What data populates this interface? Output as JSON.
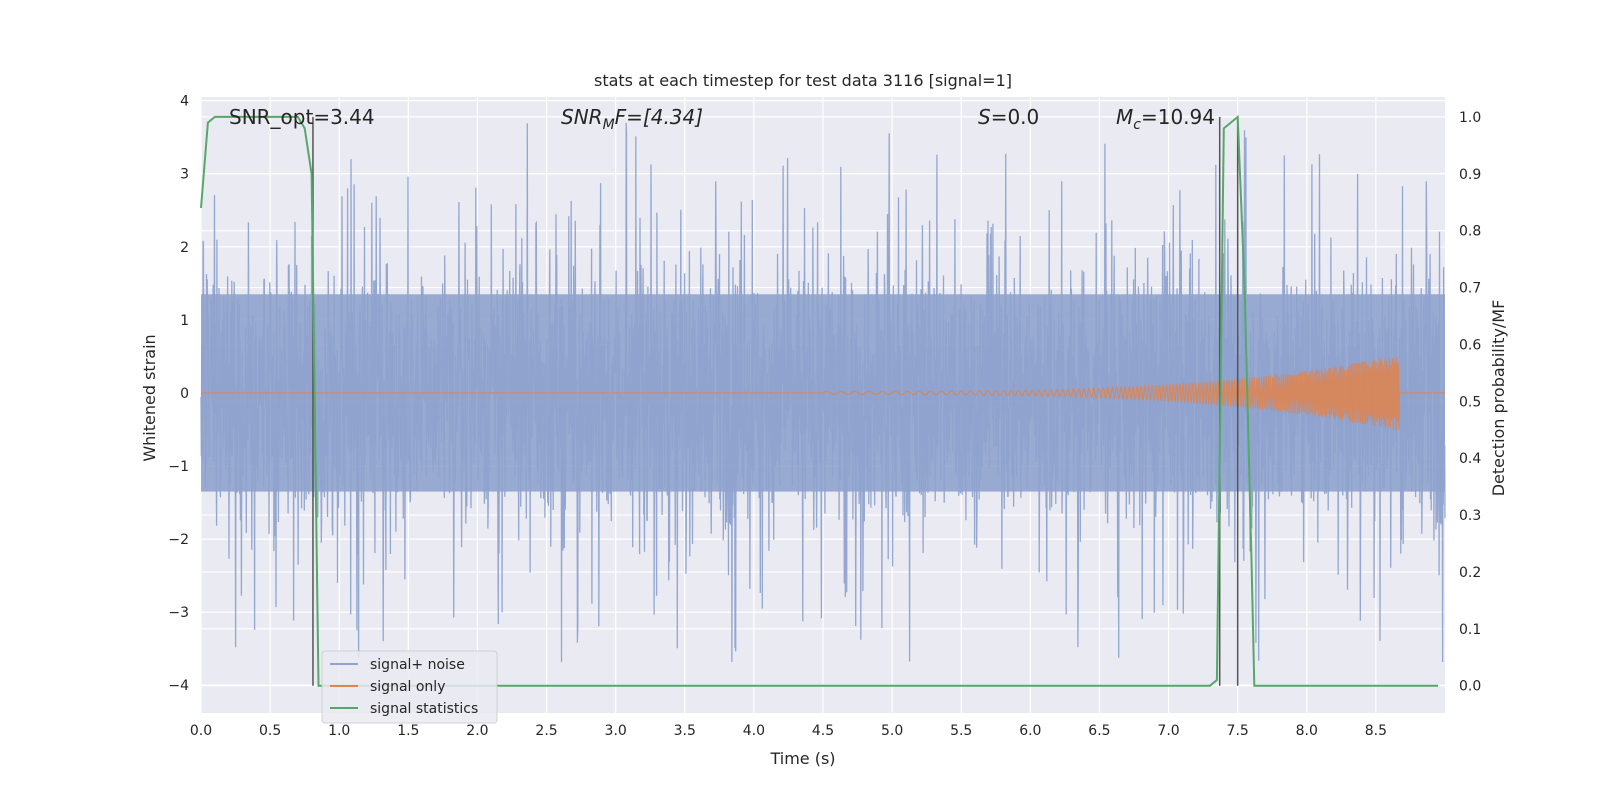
{
  "chart_data": {
    "type": "line",
    "title": "stats at each timestep for test data 3116 [signal=1]",
    "xlabel": "Time (s)",
    "ylabel": "Whitened strain",
    "ylabel_right": "Detection probability/MF",
    "xlim": [
      0,
      9
    ],
    "ylim": [
      -4.38,
      4.05
    ],
    "ylim_right": [
      -0.048,
      1.035
    ],
    "x_ticks": [
      0.0,
      0.5,
      1.0,
      1.5,
      2.0,
      2.5,
      3.0,
      3.5,
      4.0,
      4.5,
      5.0,
      5.5,
      6.0,
      6.5,
      7.0,
      7.5,
      8.0,
      8.5
    ],
    "x_tick_labels": [
      "0.0",
      "0.5",
      "1.0",
      "1.5",
      "2.0",
      "2.5",
      "3.0",
      "3.5",
      "4.0",
      "4.5",
      "5.0",
      "5.5",
      "6.0",
      "6.5",
      "7.0",
      "7.5",
      "8.0",
      "8.5"
    ],
    "y_ticks": [
      -4,
      -3,
      -2,
      -1,
      0,
      1,
      2,
      3,
      4
    ],
    "y_tick_labels": [
      "−4",
      "−3",
      "−2",
      "−1",
      "0",
      "1",
      "2",
      "3",
      "4"
    ],
    "y2_ticks": [
      0.0,
      0.1,
      0.2,
      0.3,
      0.4,
      0.5,
      0.6,
      0.7,
      0.8,
      0.9,
      1.0
    ],
    "y2_tick_labels": [
      "0.0",
      "0.1",
      "0.2",
      "0.3",
      "0.4",
      "0.5",
      "0.6",
      "0.7",
      "0.8",
      "0.9",
      "1.0"
    ],
    "grid": true,
    "legend_position": "lower-left",
    "annotations": {
      "snr_opt": "SNR_opt=3.44",
      "snr_mf_main": "SNR",
      "snr_mf_sub": "M",
      "snr_mf_rest": "F=[4.34]",
      "s_main": "S",
      "s_rest": "=0.0",
      "mc_main": "M",
      "mc_sub": "c",
      "mc_rest": "=10.94"
    },
    "series": [
      {
        "name": "signal+ noise",
        "color": "#8fa3cd",
        "description_values": "dense noise, typical amplitude ±1.5, extremes about ±3.7",
        "amplitude_core": 1.4,
        "amplitude_max": 3.7
      },
      {
        "name": "signal only",
        "color": "#dd8452",
        "chirp_start_x": 4.5,
        "chirp_end_x": 8.67,
        "chirp_peak_amplitude": 0.5
      },
      {
        "name": "signal statistics",
        "color": "#55a868",
        "axis": "right",
        "x": [
          0.0,
          0.05,
          0.1,
          0.2,
          0.3,
          0.4,
          0.5,
          0.6,
          0.7,
          0.75,
          0.8,
          0.85,
          0.9,
          1.0,
          7.0,
          7.3,
          7.35,
          7.4,
          7.45,
          7.5,
          7.55,
          7.6,
          7.62,
          8.95
        ],
        "values": [
          0.84,
          0.99,
          1.0,
          1.0,
          1.0,
          1.0,
          1.0,
          1.0,
          1.0,
          0.98,
          0.9,
          0.0,
          0.0,
          0.0,
          0.0,
          0.0,
          0.01,
          0.98,
          0.99,
          1.0,
          0.7,
          0.22,
          0.0,
          0.0
        ]
      }
    ],
    "vertical_lines_x": [
      0.81,
      7.37,
      7.5
    ],
    "vertical_line_color": "#555555"
  }
}
